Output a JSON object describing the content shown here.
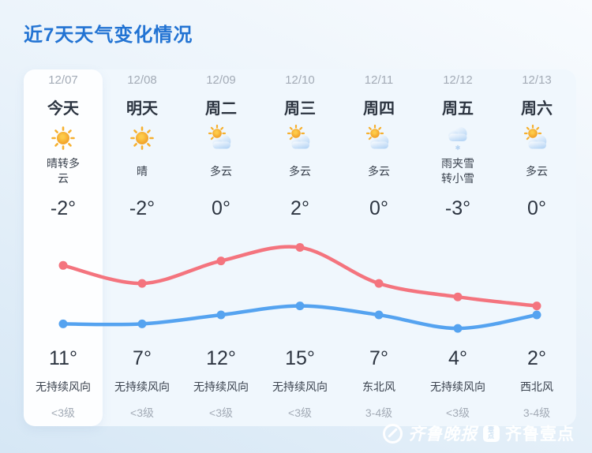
{
  "page_title": "近7天天气变化情况",
  "colors": {
    "title_blue": "#2273d3",
    "panel_bg": "#f0f7fd",
    "today_card_bg": "#fdfeff",
    "high_line_red": "#f4747e",
    "low_line_blue": "#55a3f0",
    "text_dark": "#2d3541",
    "text_muted": "#a3abb6"
  },
  "forecast": {
    "columns": [
      {
        "date": "12/07",
        "day": "今天",
        "icon": "sunny",
        "condition": "晴转多云",
        "low_temp": "-2°",
        "high_temp": "11°",
        "wind": "无持续风向",
        "wind_level": "<3级",
        "today": true
      },
      {
        "date": "12/08",
        "day": "明天",
        "icon": "sunny",
        "condition": "晴",
        "low_temp": "-2°",
        "high_temp": "7°",
        "wind": "无持续风向",
        "wind_level": "<3级",
        "today": false
      },
      {
        "date": "12/09",
        "day": "周二",
        "icon": "partly-cloudy",
        "condition": "多云",
        "low_temp": "0°",
        "high_temp": "12°",
        "wind": "无持续风向",
        "wind_level": "<3级",
        "today": false
      },
      {
        "date": "12/10",
        "day": "周三",
        "icon": "partly-cloudy",
        "condition": "多云",
        "low_temp": "2°",
        "high_temp": "15°",
        "wind": "无持续风向",
        "wind_level": "<3级",
        "today": false
      },
      {
        "date": "12/11",
        "day": "周四",
        "icon": "partly-cloudy",
        "condition": "多云",
        "low_temp": "0°",
        "high_temp": "7°",
        "wind": "东北风",
        "wind_level": "3-4级",
        "today": false
      },
      {
        "date": "12/12",
        "day": "周五",
        "icon": "sleet",
        "condition": "雨夹雪转小雪",
        "low_temp": "-3°",
        "high_temp": "4°",
        "wind": "无持续风向",
        "wind_level": "<3级",
        "today": false
      },
      {
        "date": "12/13",
        "day": "周六",
        "icon": "partly-cloudy",
        "condition": "多云",
        "low_temp": "0°",
        "high_temp": "2°",
        "wind": "西北风",
        "wind_level": "3-4级",
        "today": false
      }
    ]
  },
  "chart_data": {
    "type": "line",
    "categories": [
      "12/07",
      "12/08",
      "12/09",
      "12/10",
      "12/11",
      "12/12",
      "12/13"
    ],
    "series": [
      {
        "name": "high_temp",
        "color": "#f4747e",
        "values": [
          11,
          7,
          12,
          15,
          7,
          4,
          2
        ]
      },
      {
        "name": "low_temp",
        "color": "#55a3f0",
        "values": [
          -2,
          -2,
          0,
          2,
          0,
          -3,
          0
        ]
      }
    ],
    "unit": "°C",
    "ylim": [
      -3,
      15
    ],
    "grid": false,
    "legend": "none",
    "point_markers": true,
    "smooth": true
  },
  "watermark": {
    "brand1": "齐鲁晚报",
    "badge": "壹点",
    "brand2": "齐鲁壹点"
  }
}
